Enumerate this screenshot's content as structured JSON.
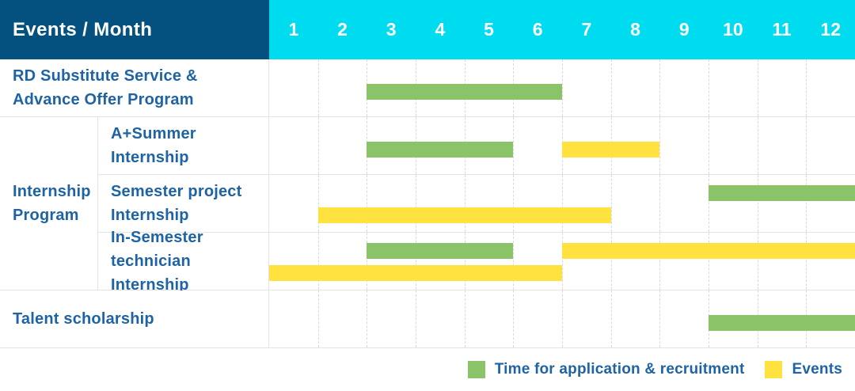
{
  "header": {
    "title": "Events / Month",
    "months": [
      "1",
      "2",
      "3",
      "4",
      "5",
      "6",
      "7",
      "8",
      "9",
      "10",
      "11",
      "12"
    ]
  },
  "colors": {
    "header_bg": "#04517F",
    "months_bg": "#00DCEF",
    "text": "#1E63A4",
    "recruitment": "#8BC368",
    "event": "#FFE240"
  },
  "chart_data": {
    "type": "gantt",
    "title": "Events / Month",
    "x_unit": "month",
    "x_range": [
      1,
      12
    ],
    "grid": "dashed-vertical",
    "legend_position": "bottom-right",
    "rows": [
      {
        "group": "",
        "label_lines": [
          "RD Substitute Service &",
          "Advance Offer Program"
        ],
        "bars": [
          {
            "kind": "recruitment",
            "start_month": 3,
            "end_month": 6,
            "line": "center"
          }
        ]
      },
      {
        "group": "Internship Program",
        "label_lines": [
          "A+Summer",
          "Internship"
        ],
        "bars": [
          {
            "kind": "recruitment",
            "start_month": 3,
            "end_month": 5,
            "line": "center"
          },
          {
            "kind": "event",
            "start_month": 7,
            "end_month": 8,
            "line": "center"
          }
        ]
      },
      {
        "group": "Internship Program",
        "label_lines": [
          "Semester project",
          "Internship"
        ],
        "bars": [
          {
            "kind": "recruitment",
            "start_month": 10,
            "end_month": 12,
            "line": "top"
          },
          {
            "kind": "event",
            "start_month": 2,
            "end_month": 7,
            "line": "bottom"
          }
        ]
      },
      {
        "group": "Internship Program",
        "label_lines": [
          "In-Semester",
          "technician Internship"
        ],
        "bars": [
          {
            "kind": "recruitment",
            "start_month": 3,
            "end_month": 5,
            "line": "top"
          },
          {
            "kind": "event",
            "start_month": 7,
            "end_month": 12,
            "line": "top"
          },
          {
            "kind": "event",
            "start_month": 1,
            "end_month": 6,
            "line": "bottom"
          }
        ]
      },
      {
        "group": "",
        "label_lines": [
          "Talent scholarship"
        ],
        "bars": [
          {
            "kind": "recruitment",
            "start_month": 10,
            "end_month": 12,
            "line": "center"
          }
        ]
      }
    ],
    "groups": [
      {
        "label_lines": [
          "Internship",
          "Program"
        ],
        "row_start": 1,
        "row_end": 3
      }
    ],
    "legend": [
      {
        "kind": "recruitment",
        "label": "Time for application & recruitment"
      },
      {
        "kind": "event",
        "label": "Events"
      }
    ]
  }
}
